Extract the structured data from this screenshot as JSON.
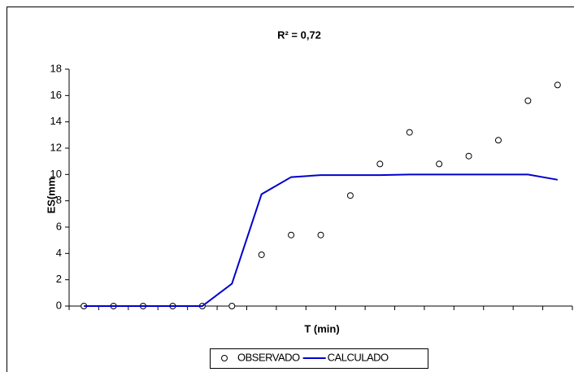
{
  "chart_data": {
    "type": "line",
    "title": "R² = 0,72",
    "x_label": "T (min)",
    "y_label": "ES(mm",
    "categories": [
      null,
      null,
      null,
      null,
      null,
      null,
      null,
      null,
      null,
      null,
      null,
      null,
      null,
      null,
      null,
      null,
      null
    ],
    "series": [
      {
        "name": "OBSERVADO",
        "color": "#000000",
        "marker": "circle",
        "line": false,
        "values": [
          0,
          0,
          0,
          0,
          0,
          0,
          3.9,
          5.4,
          5.4,
          8.4,
          10.8,
          13.2,
          10.8,
          11.4,
          12.6,
          15.6,
          16.8
        ]
      },
      {
        "name": "CALCULADO",
        "color": "#0000cc",
        "marker": null,
        "line": true,
        "values": [
          0,
          0,
          0,
          0,
          0,
          1.7,
          8.5,
          9.8,
          9.95,
          9.95,
          9.95,
          10,
          10,
          10,
          10,
          10,
          9.6
        ]
      }
    ],
    "ylim": [
      0,
      18
    ],
    "yticks": [
      0,
      2,
      4,
      6,
      8,
      10,
      12,
      14,
      16,
      18
    ],
    "grid": false,
    "legend": "bottom"
  }
}
